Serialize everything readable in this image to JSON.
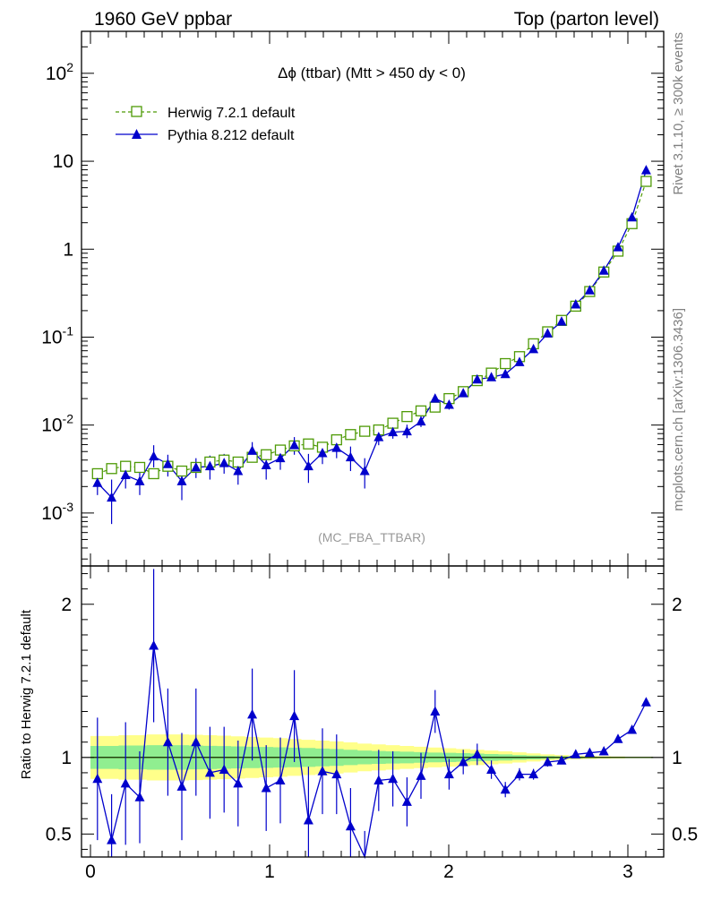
{
  "header": {
    "left": "1960 GeV ppbar",
    "right": "Top (parton level)"
  },
  "side_labels": {
    "rivet": "Rivet 3.1.10, ≥ 300k events",
    "mcplots": "mcplots.cern.ch [arXiv:1306.3436]"
  },
  "chart_data": [
    {
      "type": "scatter",
      "panel": "main",
      "title": "Δϕ (ttbar) (Mtt > 450 dy < 0)",
      "analysis_label": "(MC_FBA_TTBAR)",
      "yscale": "log",
      "xlim": [
        -0.05,
        3.2
      ],
      "ylim": [
        0.00025,
        300
      ],
      "grid": false,
      "legend_position": "top-left",
      "y_tick_labels": [
        "10^-3",
        "10^-2",
        "10^-1",
        "1",
        "10",
        "10^2"
      ],
      "x": [
        0.039,
        0.118,
        0.196,
        0.275,
        0.353,
        0.432,
        0.51,
        0.589,
        0.667,
        0.746,
        0.824,
        0.903,
        0.981,
        1.06,
        1.138,
        1.217,
        1.295,
        1.374,
        1.452,
        1.531,
        1.609,
        1.688,
        1.767,
        1.845,
        1.924,
        2.002,
        2.081,
        2.159,
        2.238,
        2.316,
        2.395,
        2.473,
        2.552,
        2.63,
        2.709,
        2.787,
        2.866,
        2.945,
        3.023,
        3.102
      ],
      "series": [
        {
          "name": "Herwig 7.2.1 default",
          "color": "#4e9a06",
          "marker": "open-square",
          "linestyle": "dashed",
          "values": [
            0.0028,
            0.0032,
            0.0034,
            0.0033,
            0.0028,
            0.0034,
            0.003,
            0.0033,
            0.0038,
            0.004,
            0.0038,
            0.0043,
            0.0046,
            0.0052,
            0.0058,
            0.0061,
            0.0056,
            0.0068,
            0.0078,
            0.0085,
            0.0088,
            0.0105,
            0.0125,
            0.0145,
            0.016,
            0.02,
            0.024,
            0.032,
            0.039,
            0.05,
            0.06,
            0.084,
            0.115,
            0.155,
            0.225,
            0.33,
            0.55,
            0.95,
            1.95,
            5.9
          ]
        },
        {
          "name": "Pythia 8.212 default",
          "color": "#0000cc",
          "marker": "filled-triangle",
          "linestyle": "solid",
          "values": [
            0.0022,
            0.0015,
            0.0027,
            0.0023,
            0.0044,
            0.0036,
            0.0023,
            0.0033,
            0.0034,
            0.0037,
            0.003,
            0.0051,
            0.0035,
            0.0042,
            0.0059,
            0.0034,
            0.0048,
            0.0055,
            0.0043,
            0.003,
            0.0073,
            0.0083,
            0.0085,
            0.011,
            0.02,
            0.017,
            0.023,
            0.033,
            0.035,
            0.038,
            0.052,
            0.073,
            0.11,
            0.15,
            0.235,
            0.34,
            0.57,
            1.05,
            2.3,
            7.9
          ]
        }
      ],
      "pythia_err_lo": [
        0.0016,
        0.00075,
        0.0019,
        0.0016,
        0.0033,
        0.0026,
        0.0014,
        0.0025,
        0.0024,
        0.0028,
        0.0021,
        0.004,
        0.0024,
        0.0031,
        0.0046,
        0.0022,
        0.0036,
        0.0042,
        0.003,
        0.0019,
        0.0059,
        0.007,
        0.0071,
        0.0095,
        0.0178,
        0.015,
        0.021,
        0.031,
        0.033,
        0.036,
        0.049,
        0.07,
        0.106,
        0.145,
        0.228,
        0.33,
        0.555,
        1.02,
        2.24,
        7.7
      ],
      "pythia_err_hi": [
        0.0029,
        0.0024,
        0.0036,
        0.003,
        0.0059,
        0.0046,
        0.0032,
        0.0042,
        0.0045,
        0.0047,
        0.0039,
        0.0064,
        0.0046,
        0.0054,
        0.0073,
        0.0047,
        0.006,
        0.0069,
        0.0057,
        0.0042,
        0.0089,
        0.0097,
        0.0101,
        0.0127,
        0.0224,
        0.019,
        0.025,
        0.035,
        0.037,
        0.04,
        0.055,
        0.076,
        0.114,
        0.155,
        0.242,
        0.35,
        0.585,
        1.08,
        2.36,
        8.1
      ]
    },
    {
      "type": "line",
      "panel": "ratio",
      "ylabel": "Ratio to Herwig 7.2.1 default",
      "xlim": [
        -0.05,
        3.2
      ],
      "ylim": [
        0.35,
        2.25
      ],
      "y_tick_labels": [
        "0.5",
        "1",
        "2"
      ],
      "x_tick_labels": [
        "0",
        "1",
        "2",
        "3"
      ],
      "reference_line": 1,
      "band_inner_color": "#90ee90",
      "band_outer_color": "#ffff8a",
      "band_inner_halfwidth": [
        0.075,
        0.075,
        0.078,
        0.078,
        0.08,
        0.08,
        0.08,
        0.078,
        0.076,
        0.074,
        0.072,
        0.07,
        0.068,
        0.066,
        0.064,
        0.062,
        0.058,
        0.055,
        0.05,
        0.045,
        0.042,
        0.04,
        0.038,
        0.035,
        0.032,
        0.03,
        0.028,
        0.025,
        0.022,
        0.02,
        0.016,
        0.013,
        0.01,
        0.008,
        0.006,
        0.005,
        0.004,
        0.003,
        0.002,
        0.002
      ],
      "band_outer_halfwidth": [
        0.14,
        0.14,
        0.145,
        0.145,
        0.15,
        0.15,
        0.15,
        0.148,
        0.145,
        0.142,
        0.138,
        0.134,
        0.13,
        0.126,
        0.12,
        0.115,
        0.11,
        0.105,
        0.098,
        0.09,
        0.085,
        0.08,
        0.075,
        0.07,
        0.065,
        0.06,
        0.055,
        0.05,
        0.045,
        0.04,
        0.033,
        0.027,
        0.02,
        0.016,
        0.012,
        0.01,
        0.008,
        0.006,
        0.004,
        0.003
      ],
      "series": [
        {
          "name": "Pythia 8.212 default",
          "color": "#0000cc",
          "values": [
            0.86,
            0.46,
            0.83,
            0.74,
            1.73,
            1.1,
            0.81,
            1.1,
            0.9,
            0.92,
            0.83,
            1.28,
            0.8,
            0.85,
            1.27,
            0.59,
            0.91,
            0.89,
            0.55,
            0.32,
            0.85,
            0.86,
            0.71,
            0.88,
            1.3,
            0.89,
            0.97,
            1.02,
            0.92,
            0.79,
            0.89,
            0.89,
            0.97,
            0.98,
            1.02,
            1.03,
            1.04,
            1.12,
            1.18,
            1.36
          ],
          "err_lo": [
            0.4,
            0.3,
            0.4,
            0.3,
            0.5,
            0.35,
            0.35,
            0.35,
            0.3,
            0.28,
            0.28,
            0.3,
            0.28,
            0.28,
            0.3,
            0.35,
            0.28,
            0.26,
            0.25,
            0.2,
            0.2,
            0.18,
            0.16,
            0.15,
            0.14,
            0.1,
            0.08,
            0.07,
            0.06,
            0.05,
            0.04,
            0.035,
            0.03,
            0.025,
            0.02,
            0.02,
            0.02,
            0.02,
            0.01,
            0.01
          ],
          "err_hi": [
            0.4,
            0.3,
            0.4,
            0.3,
            0.5,
            0.35,
            0.35,
            0.35,
            0.3,
            0.28,
            0.28,
            0.3,
            0.28,
            0.28,
            0.3,
            0.35,
            0.28,
            0.26,
            0.25,
            0.2,
            0.2,
            0.18,
            0.16,
            0.15,
            0.14,
            0.1,
            0.08,
            0.07,
            0.06,
            0.05,
            0.04,
            0.035,
            0.03,
            0.025,
            0.02,
            0.02,
            0.02,
            0.02,
            0.01,
            0.01
          ]
        }
      ]
    }
  ]
}
